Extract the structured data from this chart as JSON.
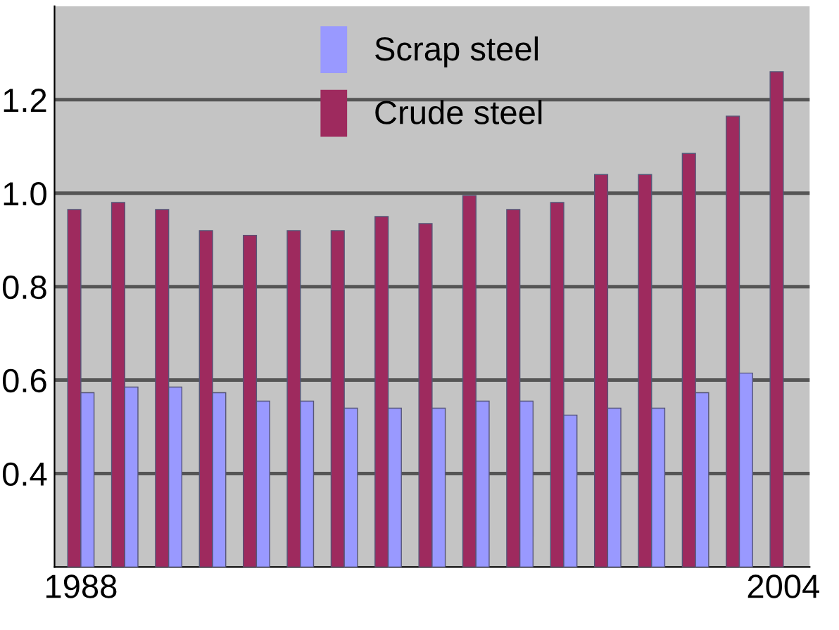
{
  "chart_data": {
    "type": "bar",
    "categories": [
      "1988",
      null,
      null,
      null,
      null,
      null,
      null,
      null,
      null,
      null,
      null,
      null,
      null,
      null,
      null,
      null,
      "2004"
    ],
    "series": [
      {
        "name": "Crude steel",
        "color": "#9e2a5e",
        "values": [
          0.965,
          0.98,
          0.965,
          0.92,
          0.91,
          0.92,
          0.92,
          0.95,
          0.935,
          0.995,
          0.965,
          0.98,
          1.04,
          1.04,
          1.085,
          1.165,
          1.26
        ]
      },
      {
        "name": "Scrap steel",
        "color": "#9999ff",
        "values": [
          0.573,
          0.585,
          0.585,
          0.573,
          0.555,
          0.555,
          0.54,
          0.54,
          0.54,
          0.555,
          0.555,
          0.525,
          0.54,
          0.54,
          0.573,
          0.615,
          null
        ]
      }
    ],
    "ylim": [
      0.2,
      1.4
    ],
    "yticks": [
      0.4,
      0.6,
      0.8,
      {
        "value": 1.0,
        "label": "1.0"
      },
      1.2
    ],
    "grid": "y",
    "legend": "top"
  }
}
